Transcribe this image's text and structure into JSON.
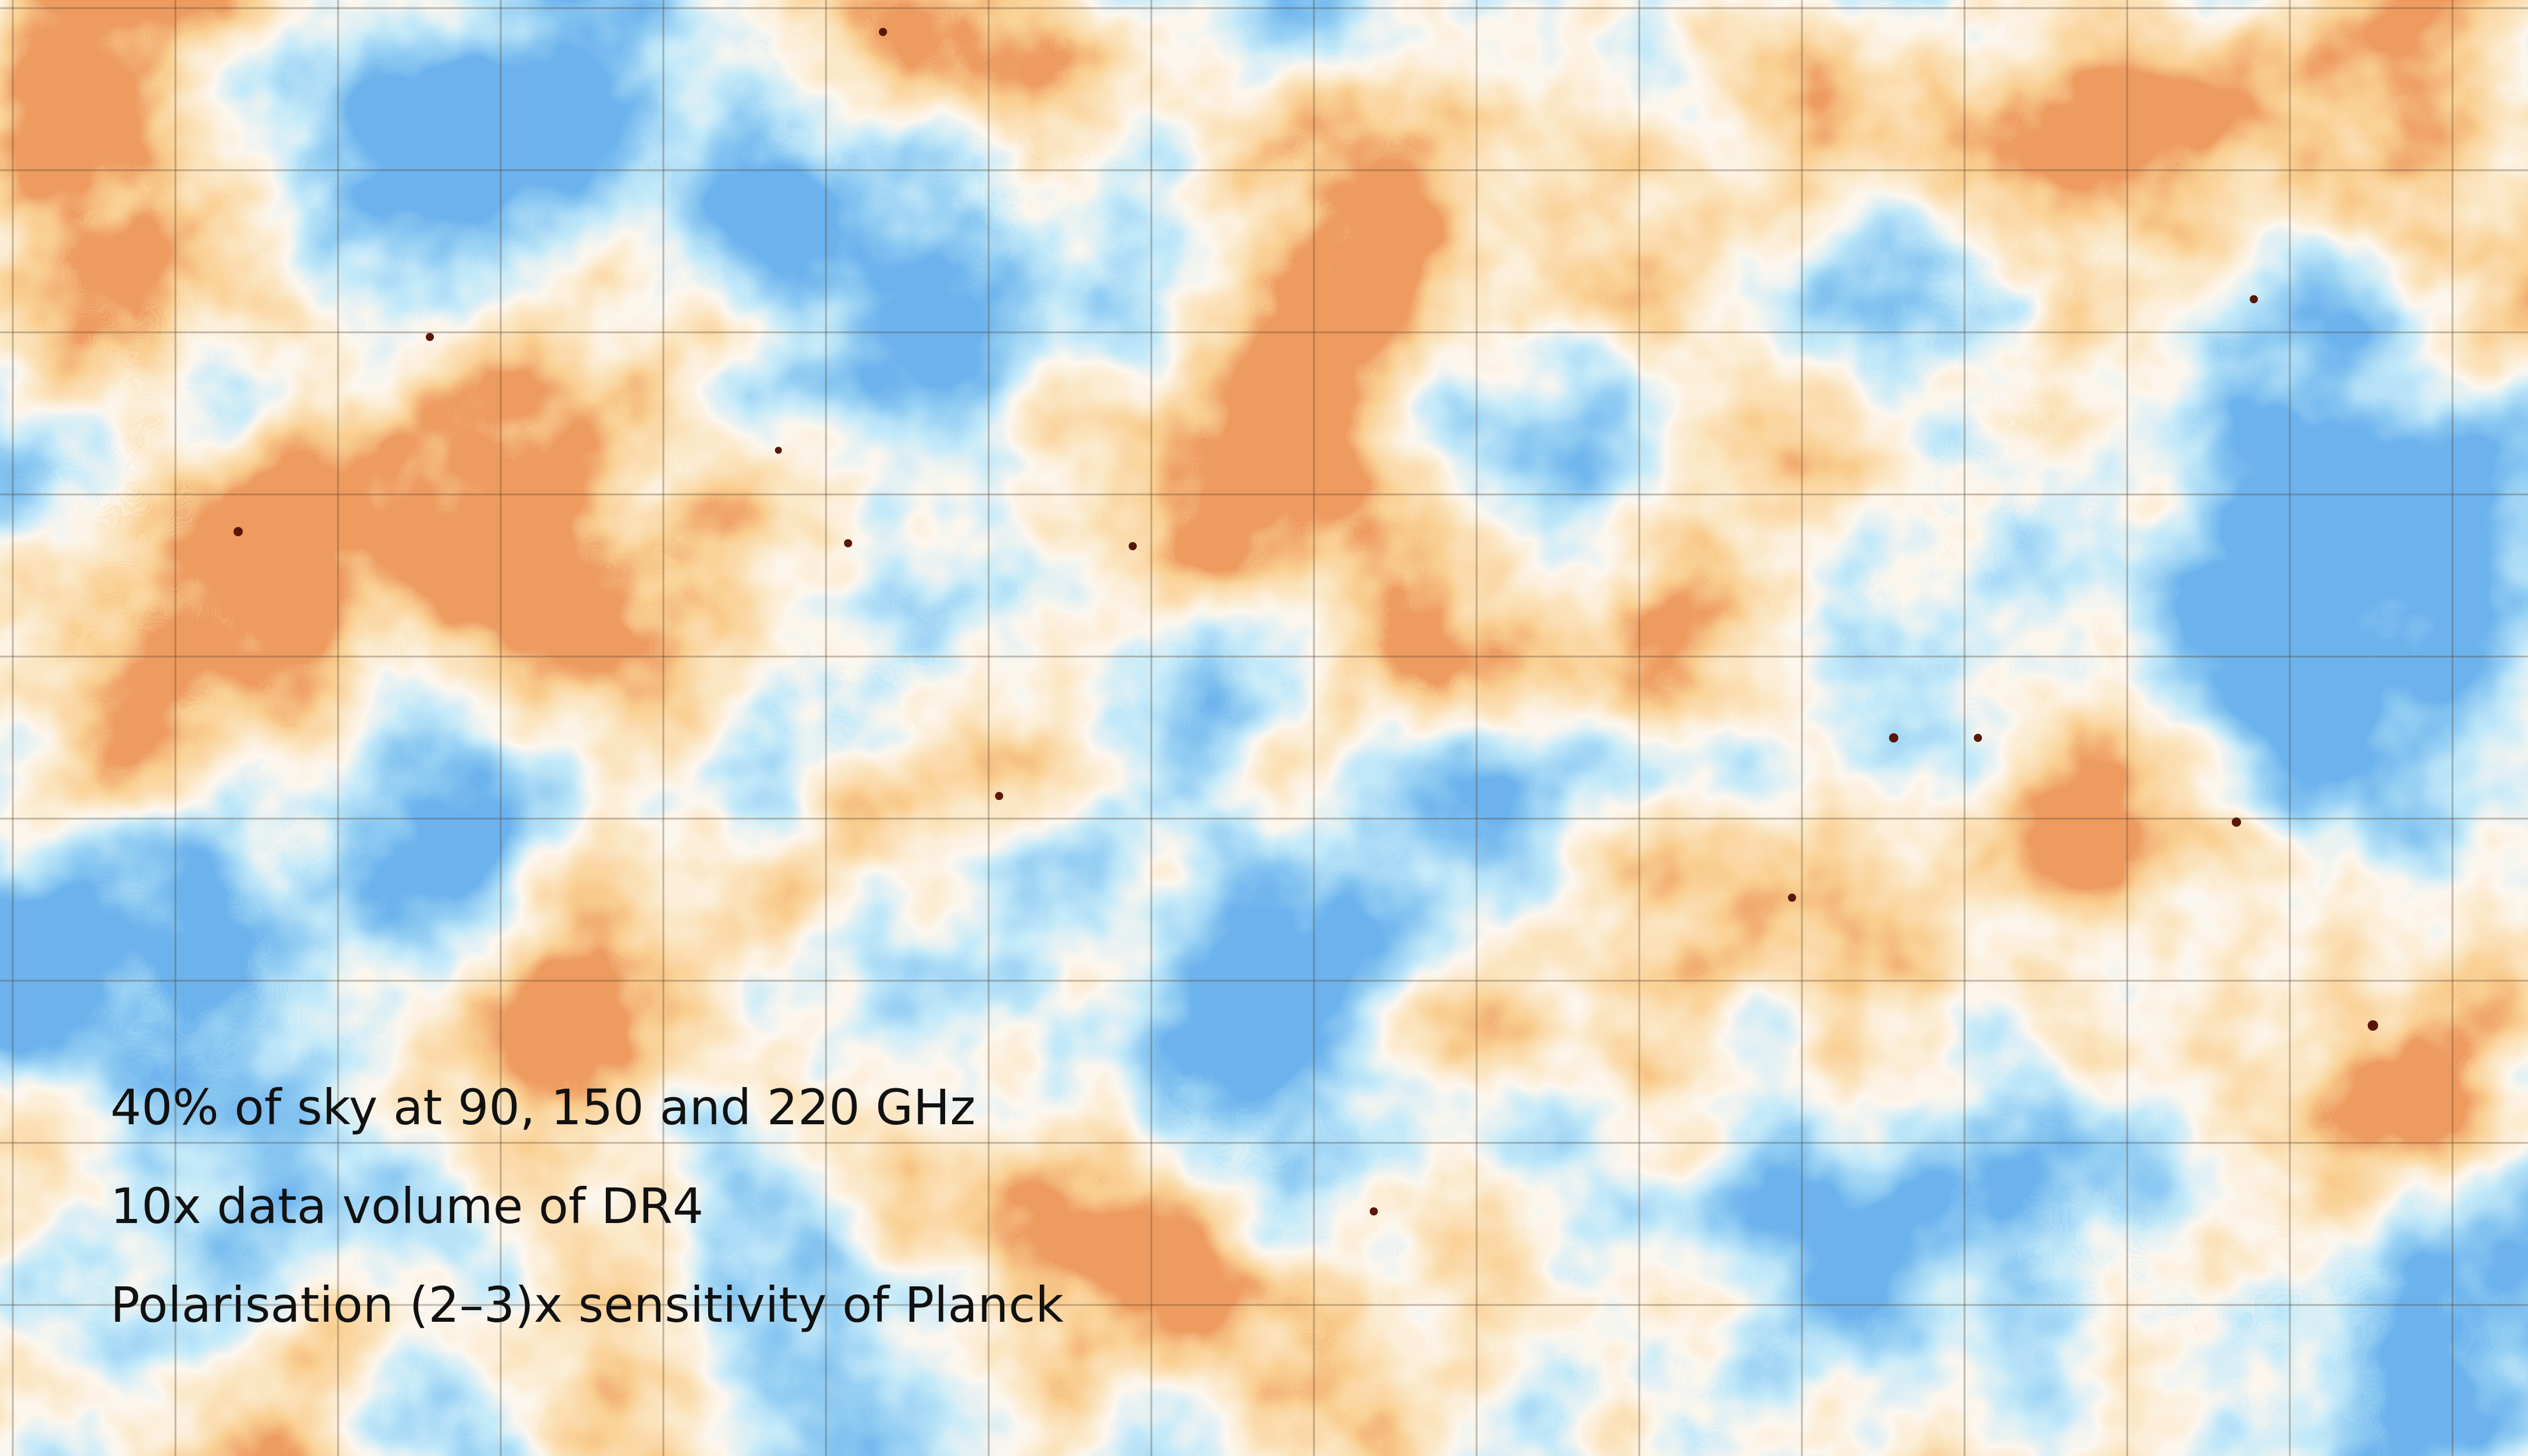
{
  "caption": {
    "lines": [
      "40% of sky at 90, 150 and 220 GHz",
      "10x data volume of DR4",
      "Polarisation (2–3)x sensitivity of Planck"
    ]
  }
}
